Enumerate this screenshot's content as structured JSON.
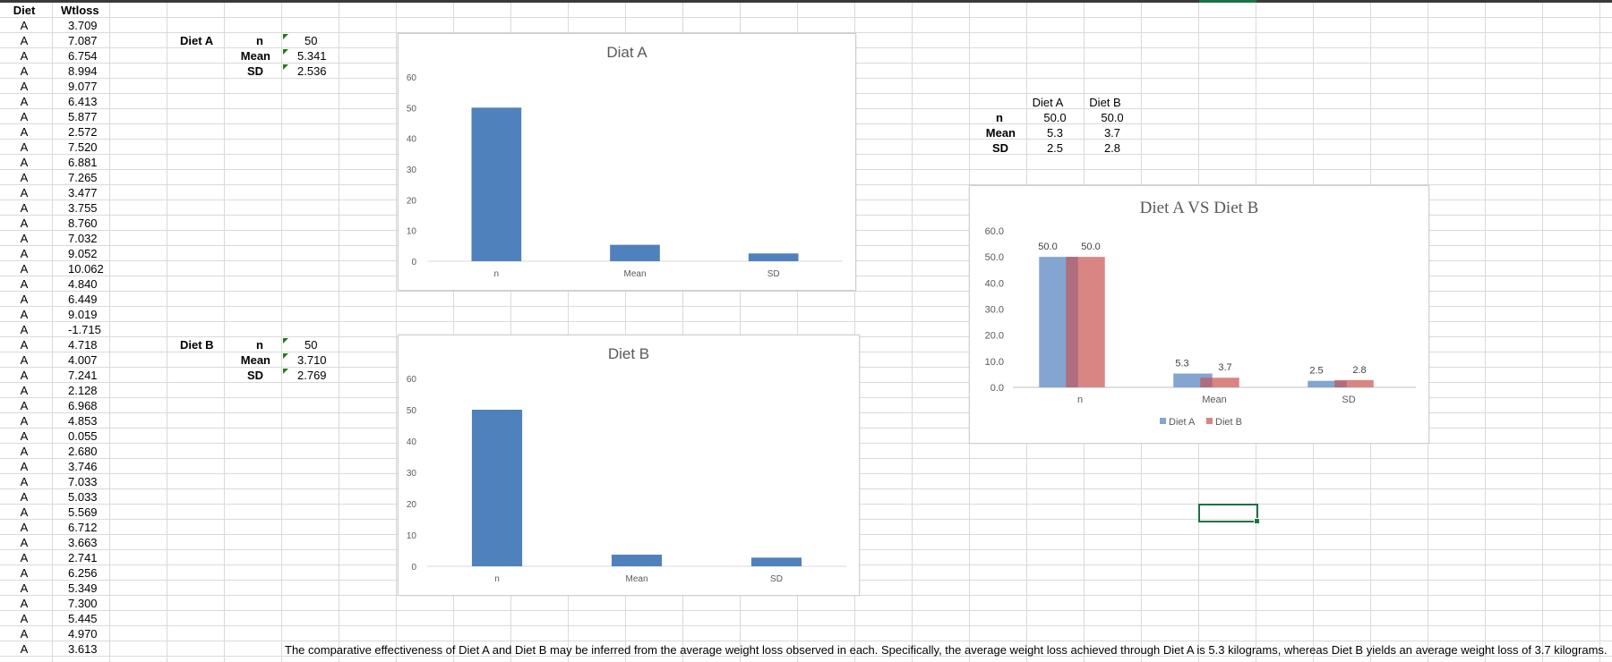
{
  "columns": {
    "diet": "Diet",
    "wtloss": "Wtloss"
  },
  "rows": [
    [
      "A",
      "3.709"
    ],
    [
      "A",
      "7.087"
    ],
    [
      "A",
      "6.754"
    ],
    [
      "A",
      "8.994"
    ],
    [
      "A",
      "9.077"
    ],
    [
      "A",
      "6.413"
    ],
    [
      "A",
      "5.877"
    ],
    [
      "A",
      "2.572"
    ],
    [
      "A",
      "7.520"
    ],
    [
      "A",
      "6.881"
    ],
    [
      "A",
      "7.265"
    ],
    [
      "A",
      "3.477"
    ],
    [
      "A",
      "3.755"
    ],
    [
      "A",
      "8.760"
    ],
    [
      "A",
      "7.032"
    ],
    [
      "A",
      "9.052"
    ],
    [
      "A",
      "10.062"
    ],
    [
      "A",
      "4.840"
    ],
    [
      "A",
      "6.449"
    ],
    [
      "A",
      "9.019"
    ],
    [
      "A",
      "-1.715"
    ],
    [
      "A",
      "4.718"
    ],
    [
      "A",
      "4.007"
    ],
    [
      "A",
      "7.241"
    ],
    [
      "A",
      "2.128"
    ],
    [
      "A",
      "6.968"
    ],
    [
      "A",
      "4.853"
    ],
    [
      "A",
      "0.055"
    ],
    [
      "A",
      "2.680"
    ],
    [
      "A",
      "3.746"
    ],
    [
      "A",
      "7.033"
    ],
    [
      "A",
      "5.033"
    ],
    [
      "A",
      "5.569"
    ],
    [
      "A",
      "6.712"
    ],
    [
      "A",
      "3.663"
    ],
    [
      "A",
      "2.741"
    ],
    [
      "A",
      "6.256"
    ],
    [
      "A",
      "5.349"
    ],
    [
      "A",
      "7.300"
    ],
    [
      "A",
      "5.445"
    ],
    [
      "A",
      "4.970"
    ],
    [
      "A",
      "3.613"
    ]
  ],
  "stats_a": {
    "label": "Diet A",
    "n_label": "n",
    "mean_label": "Mean",
    "sd_label": "SD",
    "n": "50",
    "mean": "5.341",
    "sd": "2.536"
  },
  "stats_b": {
    "label": "Diet B",
    "n_label": "n",
    "mean_label": "Mean",
    "sd_label": "SD",
    "n": "50",
    "mean": "3.710",
    "sd": "2.769"
  },
  "summary": {
    "headers": [
      "Diet A",
      "Diet B"
    ],
    "rows": [
      {
        "label": "n",
        "a": "50.0",
        "b": "50.0"
      },
      {
        "label": "Mean",
        "a": "5.3",
        "b": "3.7"
      },
      {
        "label": "SD",
        "a": "2.5",
        "b": "2.8"
      }
    ]
  },
  "conclusion": "The comparative effectiveness of Diet A and Diet B may be inferred from the average weight loss observed in each. Specifically, the average weight loss achieved through Diet A is 5.3 kilograms, whereas Diet B yields an average weight loss of 3.7 kilograms.",
  "colors": {
    "bar": "#4f81bd",
    "diet_a": "#84a5d2",
    "diet_b": "#d98584",
    "overlap": "#ad6e7f",
    "selection": "#1e7145"
  },
  "chart_data": [
    {
      "type": "bar",
      "title": "Diat A",
      "categories": [
        "n",
        "Mean",
        "SD"
      ],
      "values": [
        50,
        5.341,
        2.536
      ],
      "ylim": [
        0,
        60
      ],
      "yticks": [
        "0",
        "10",
        "20",
        "30",
        "40",
        "50",
        "60"
      ],
      "grid": false
    },
    {
      "type": "bar",
      "title": "Diet B",
      "categories": [
        "n",
        "Mean",
        "SD"
      ],
      "values": [
        50,
        3.71,
        2.769
      ],
      "ylim": [
        0,
        60
      ],
      "yticks": [
        "0",
        "10",
        "20",
        "30",
        "40",
        "50",
        "60"
      ],
      "grid": false
    },
    {
      "type": "bar",
      "title": "Diet A VS Diet B",
      "categories": [
        "n",
        "Mean",
        "SD"
      ],
      "series": [
        {
          "name": "Diet A",
          "values": [
            50.0,
            5.3,
            2.5
          ],
          "labels": [
            "50.0",
            "5.3",
            "2.5"
          ]
        },
        {
          "name": "Diet B",
          "values": [
            50.0,
            3.7,
            2.8
          ],
          "labels": [
            "50.0",
            "3.7",
            "2.8"
          ]
        }
      ],
      "ylim": [
        0,
        60
      ],
      "yticks": [
        "0.0",
        "10.0",
        "20.0",
        "30.0",
        "40.0",
        "50.0",
        "60.0"
      ],
      "legend": "bottom",
      "grid": false
    }
  ]
}
